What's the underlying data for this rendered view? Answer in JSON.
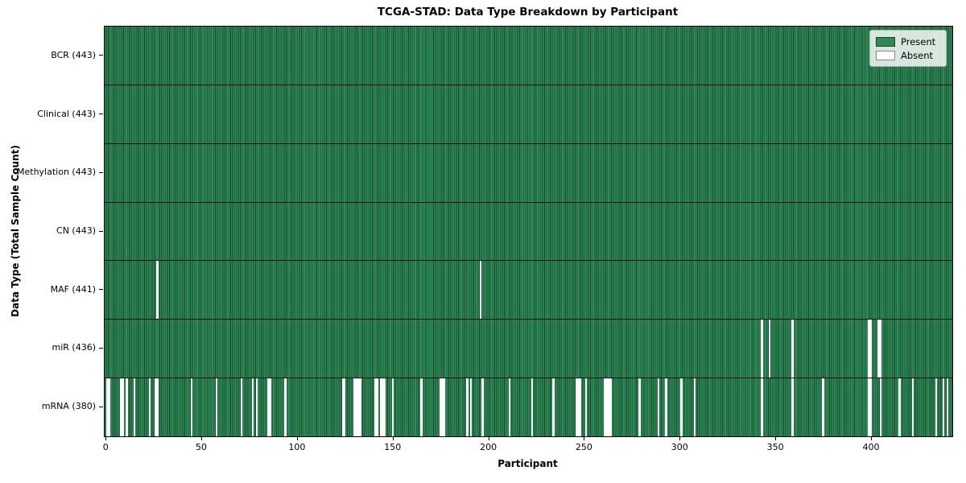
{
  "chart_data": {
    "type": "heatmap",
    "title": "TCGA-STAD: Data Type Breakdown by Participant",
    "xlabel": "Participant",
    "ylabel": "Data Type (Total Sample Count)",
    "n_participants": 443,
    "x_ticks": [
      0,
      50,
      100,
      150,
      200,
      250,
      300,
      350,
      400
    ],
    "cell_states": [
      "Present",
      "Absent"
    ],
    "legend": [
      {
        "label": "Present",
        "color": "#2e8b57",
        "edge": "#16472c"
      },
      {
        "label": "Absent",
        "color": "#ffffff",
        "edge": "#888888"
      }
    ],
    "legend_position": "upper right",
    "rows": [
      {
        "data_type": "BCR",
        "total_samples": 443,
        "label": "BCR (443)",
        "absent_participants": []
      },
      {
        "data_type": "Clinical",
        "total_samples": 443,
        "label": "Clinical (443)",
        "absent_participants": []
      },
      {
        "data_type": "Methylation",
        "total_samples": 443,
        "label": "Methylation (443)",
        "absent_participants": []
      },
      {
        "data_type": "CN",
        "total_samples": 443,
        "label": "CN (443)",
        "absent_participants": []
      },
      {
        "data_type": "MAF",
        "total_samples": 441,
        "label": "MAF (441)",
        "absent_participants": [
          27,
          196
        ]
      },
      {
        "data_type": "miR",
        "total_samples": 436,
        "label": "miR (436)",
        "absent_participants": [
          343,
          347,
          359,
          399,
          400,
          404,
          405
        ]
      },
      {
        "data_type": "mRNA",
        "total_samples": 380,
        "label": "mRNA (380)",
        "absent_participants": [
          1,
          2,
          8,
          9,
          11,
          15,
          23,
          26,
          27,
          45,
          58,
          71,
          77,
          79,
          85,
          86,
          94,
          124,
          125,
          130,
          131,
          132,
          133,
          141,
          142,
          144,
          145,
          146,
          150,
          165,
          175,
          176,
          177,
          189,
          191,
          197,
          211,
          223,
          234,
          246,
          247,
          248,
          251,
          261,
          262,
          263,
          264,
          279,
          289,
          293,
          301,
          308,
          343,
          359,
          375,
          399,
          400,
          405,
          415,
          422,
          434,
          438,
          440
        ]
      }
    ],
    "colors": {
      "present_fill": "#2e8b57",
      "cell_edge": "#16472c",
      "absent_fill": "#ffffff",
      "row_divider": "#050f08",
      "spine": "#000000"
    },
    "grid": false
  }
}
